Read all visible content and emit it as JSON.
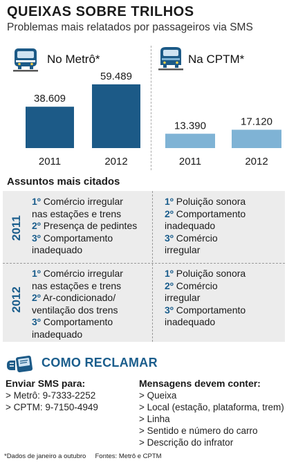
{
  "title": "QUEIXAS SOBRE TRILHOS",
  "subtitle": "Problemas mais relatados por passageiros via SMS",
  "metro": {
    "label": "No Metrô*"
  },
  "cptm": {
    "label": "Na CPTM*"
  },
  "chart_data": [
    {
      "type": "bar",
      "categories": [
        "2011",
        "2012"
      ],
      "values": [
        38609,
        59489
      ],
      "value_labels": [
        "38.609",
        "59.489"
      ],
      "color": "#1c5a87",
      "ylim": [
        0,
        62000
      ]
    },
    {
      "type": "bar",
      "categories": [
        "2011",
        "2012"
      ],
      "values": [
        13390,
        17120
      ],
      "value_labels": [
        "13.390",
        "17.120"
      ],
      "color": "#7fb3d5",
      "ylim": [
        0,
        62000
      ]
    }
  ],
  "assuntos": {
    "title": "Assuntos mais citados",
    "year_2011": "2011",
    "year_2012": "2012",
    "metro_2011": [
      {
        "num": "1º",
        "text": "Comércio irregular"
      },
      {
        "num": "",
        "text": "nas estações e trens"
      },
      {
        "num": "2º",
        "text": "Presença de pedintes"
      },
      {
        "num": "3º",
        "text": "Comportamento"
      },
      {
        "num": "",
        "text": "inadequado"
      }
    ],
    "cptm_2011": [
      {
        "num": "1º",
        "text": "Poluição sonora"
      },
      {
        "num": "2º",
        "text": "Comportamento"
      },
      {
        "num": "",
        "text": "inadequado"
      },
      {
        "num": "3º",
        "text": "Comércio"
      },
      {
        "num": "",
        "text": "irregular"
      }
    ],
    "metro_2012": [
      {
        "num": "1º",
        "text": "Comércio irregular"
      },
      {
        "num": "",
        "text": "nas estações e trens"
      },
      {
        "num": "2º",
        "text": "Ar-condicionado/"
      },
      {
        "num": "",
        "text": "ventilação dos trens"
      },
      {
        "num": "3º",
        "text": "Comportamento"
      },
      {
        "num": "",
        "text": "inadequado"
      }
    ],
    "cptm_2012": [
      {
        "num": "1º",
        "text": "Poluição sonora"
      },
      {
        "num": "2º",
        "text": "Comércio"
      },
      {
        "num": "",
        "text": "irregular"
      },
      {
        "num": "3º",
        "text": "Comportamento"
      },
      {
        "num": "",
        "text": "inadequado"
      }
    ]
  },
  "como": {
    "title": "COMO RECLAMAR",
    "sms_heading": "Enviar SMS para:",
    "sms_items": [
      "> Metrô: 9-7333-2252",
      "> CPTM: 9-7150-4949"
    ],
    "msg_heading": "Mensagens devem conter:",
    "msg_items": [
      "> Queixa",
      "> Local (estação, plataforma, trem)",
      "> Linha",
      "> Sentido e número do carro",
      "> Descrição do infrator"
    ]
  },
  "footnote": "*Dados de janeiro a outubro     Fontes: Metrô e CPTM",
  "colors": {
    "metro": "#1c5a87",
    "cptm": "#7fb3d5",
    "accent": "#1a5d8c"
  }
}
